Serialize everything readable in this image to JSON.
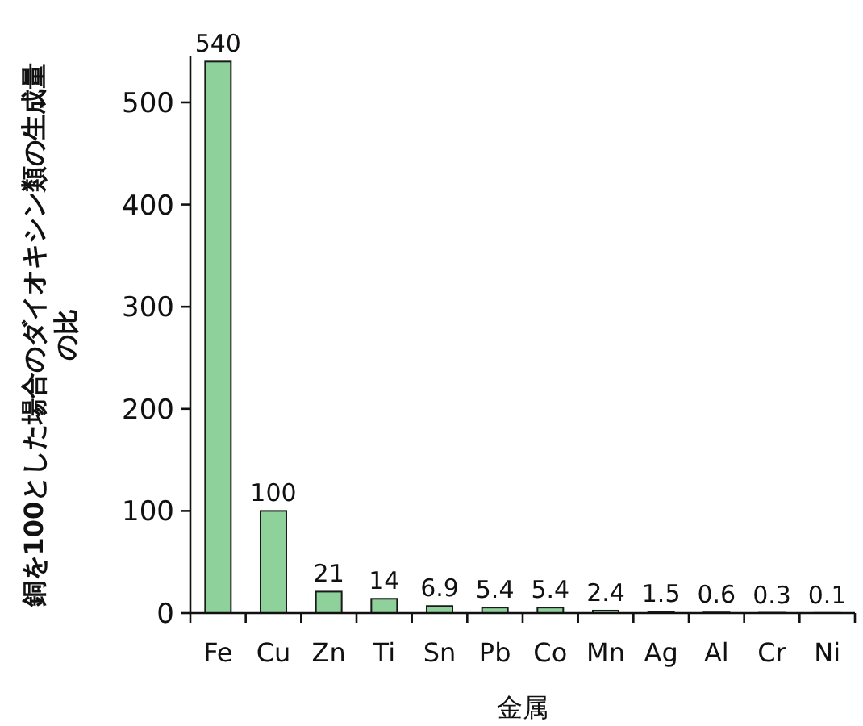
{
  "chart_data": {
    "type": "bar",
    "ylabel": "銅を100とした場合のダイオキシン類の生成量の比",
    "xlabel": "金属",
    "categories": [
      "Fe",
      "Cu",
      "Zn",
      "Ti",
      "Sn",
      "Pb",
      "Co",
      "Mn",
      "Ag",
      "Al",
      "Cr",
      "Ni"
    ],
    "values": [
      540,
      100,
      21,
      14,
      6.9,
      5.4,
      5.4,
      2.4,
      1.5,
      0.6,
      0.3,
      0.1
    ],
    "color": "#8fd19b",
    "ylim": [
      0,
      545
    ],
    "yticks": [
      0,
      100,
      200,
      300,
      400,
      500
    ],
    "data_labels": true
  }
}
